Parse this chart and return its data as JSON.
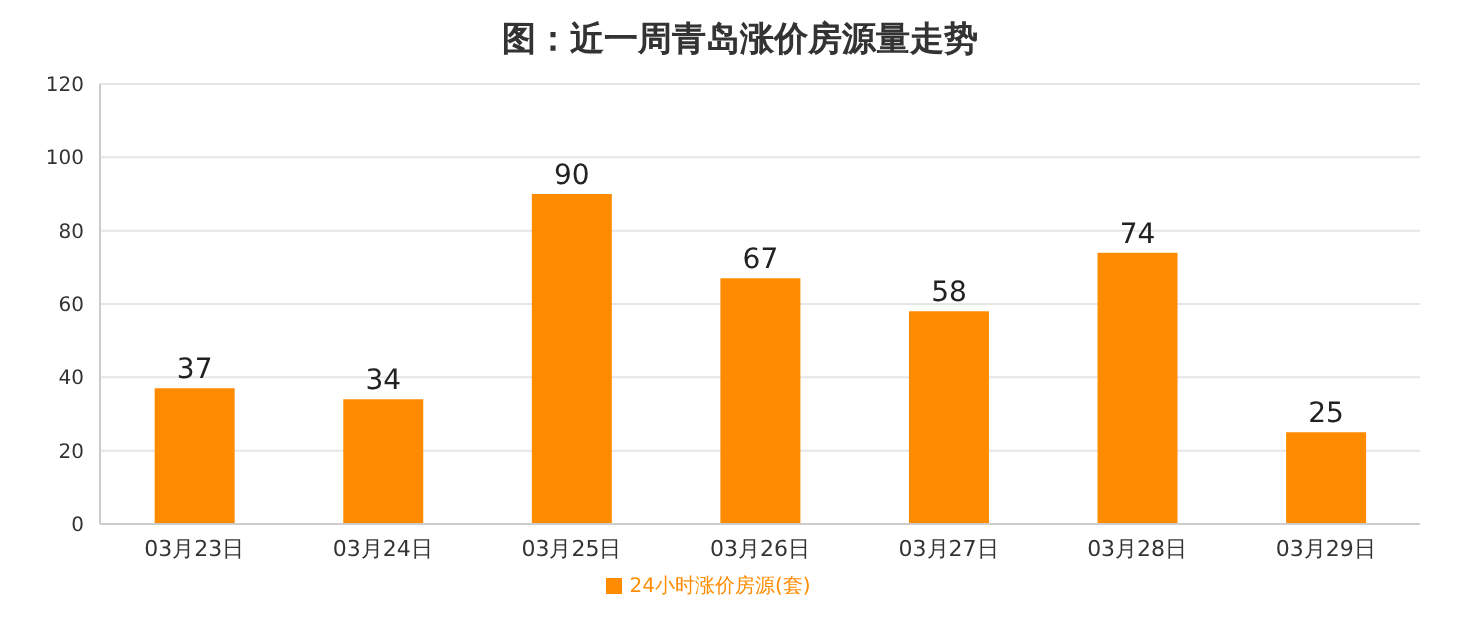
{
  "chart_data": {
    "type": "bar",
    "title": "图：近一周青岛涨价房源量走势",
    "categories": [
      "03月23日",
      "03月24日",
      "03月25日",
      "03月26日",
      "03月27日",
      "03月28日",
      "03月29日"
    ],
    "series": [
      {
        "name": "24小时涨价房源(套)",
        "color": "#ff8c00",
        "values": [
          37,
          34,
          90,
          67,
          58,
          74,
          25
        ]
      }
    ],
    "ylim": [
      0,
      120
    ],
    "yticks": [
      0,
      20,
      40,
      60,
      80,
      100,
      120
    ],
    "grid": "y",
    "legend": "bottom",
    "data_labels": true
  }
}
